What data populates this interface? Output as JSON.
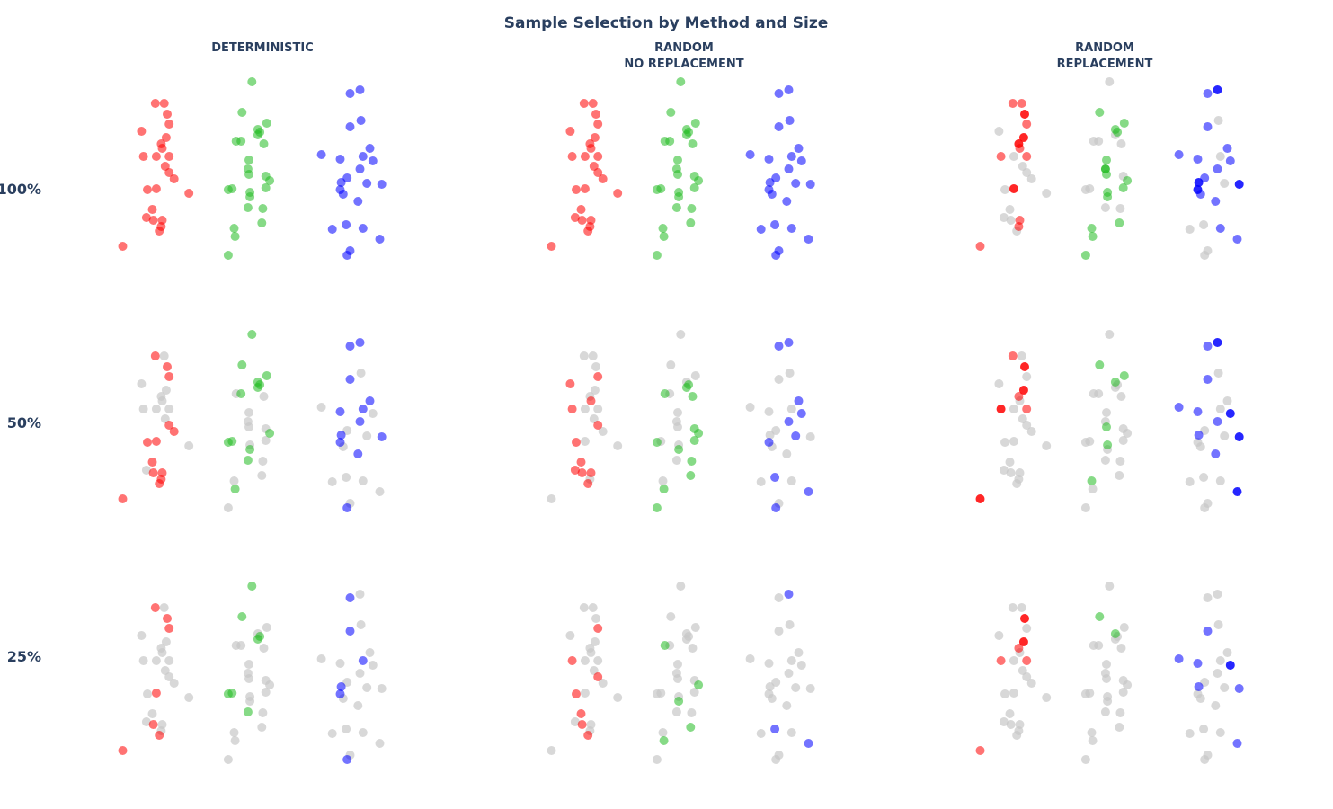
{
  "chart_data": {
    "type": "scatter",
    "subtype": "strip-plot facet grid",
    "title": "Sample Selection by Method and Size",
    "columns": [
      "DETERMINISTIC",
      "RANDOM\nNO REPLACEMENT",
      "RANDOM\nREPLACEMENT"
    ],
    "rows": [
      "100%",
      "50%",
      "25%"
    ],
    "groups": [
      {
        "name": "red",
        "color": "#ff0000",
        "points": [
          [
            -0.02,
            92.5
          ],
          [
            0.07,
            92.5
          ],
          [
            0.1,
            86.5
          ],
          [
            0.12,
            81
          ],
          [
            -0.16,
            77
          ],
          [
            0.09,
            73.5
          ],
          [
            0.04,
            70
          ],
          [
            0.05,
            67.5
          ],
          [
            -0.14,
            63
          ],
          [
            -0.01,
            63
          ],
          [
            0.12,
            63
          ],
          [
            0.08,
            57.5
          ],
          [
            0.12,
            54
          ],
          [
            0.17,
            50.5
          ],
          [
            -0.1,
            44.5
          ],
          [
            -0.01,
            45
          ],
          [
            0.32,
            42.5
          ],
          [
            -0.05,
            33.5
          ],
          [
            -0.11,
            29
          ],
          [
            -0.04,
            27.5
          ],
          [
            0.05,
            27.5
          ],
          [
            0.04,
            24
          ],
          [
            0.02,
            21.5
          ],
          [
            -0.35,
            13
          ]
        ]
      },
      {
        "name": "green",
        "color": "#22bb22",
        "points": [
          [
            0.03,
            104.5
          ],
          [
            -0.07,
            87.5
          ],
          [
            0.18,
            81.5
          ],
          [
            0.09,
            78
          ],
          [
            0.11,
            76.5
          ],
          [
            0.09,
            75
          ],
          [
            -0.13,
            71.5
          ],
          [
            -0.08,
            71.5
          ],
          [
            0.15,
            70
          ],
          [
            0.0,
            61
          ],
          [
            -0.01,
            56
          ],
          [
            0.0,
            53
          ],
          [
            0.17,
            52
          ],
          [
            0.21,
            49.5
          ],
          [
            0.17,
            45.5
          ],
          [
            -0.21,
            44.5
          ],
          [
            -0.17,
            45
          ],
          [
            0.01,
            43
          ],
          [
            0.01,
            40.5
          ],
          [
            -0.01,
            34.5
          ],
          [
            0.14,
            34
          ],
          [
            0.13,
            26
          ],
          [
            -0.15,
            23
          ],
          [
            -0.14,
            18.5
          ],
          [
            -0.21,
            8
          ]
        ]
      },
      {
        "name": "blue",
        "color": "#0000ff",
        "points": [
          [
            -0.05,
            98
          ],
          [
            0.05,
            100
          ],
          [
            -0.05,
            79.5
          ],
          [
            0.06,
            83
          ],
          [
            -0.34,
            64
          ],
          [
            -0.15,
            61.5
          ],
          [
            0.08,
            63
          ],
          [
            0.15,
            67.5
          ],
          [
            0.18,
            60.5
          ],
          [
            0.05,
            56
          ],
          [
            -0.08,
            51
          ],
          [
            -0.14,
            48.5
          ],
          [
            0.12,
            48
          ],
          [
            0.27,
            47.5
          ],
          [
            -0.15,
            44.5
          ],
          [
            -0.12,
            42
          ],
          [
            0.03,
            38
          ],
          [
            -0.23,
            22.5
          ],
          [
            -0.09,
            25
          ],
          [
            0.08,
            23
          ],
          [
            0.25,
            17
          ],
          [
            -0.05,
            10.5
          ],
          [
            -0.08,
            8
          ]
        ]
      }
    ],
    "unselected_color": "#c8c8c8",
    "selections": [
      [
        [
          "all",
          "all",
          "all"
        ],
        [
          "all",
          "all",
          "all"
        ],
        [
          [
            0,
            1,
            2,
            2,
            3,
            5,
            5,
            6,
            6,
            7,
            8,
            10,
            15,
            15,
            20,
            21,
            23
          ],
          [
            1,
            2,
            3,
            4,
            9,
            10,
            10,
            11,
            13,
            14,
            17,
            18,
            21,
            22,
            23,
            24
          ],
          [
            0,
            1,
            1,
            2,
            4,
            5,
            7,
            8,
            9,
            10,
            11,
            11,
            13,
            13,
            14,
            14,
            15,
            16,
            19,
            20
          ]
        ]
      ],
      [
        [
          [
            0,
            2,
            3,
            12,
            13,
            14,
            15,
            17,
            19,
            20,
            21,
            22,
            23
          ],
          [
            0,
            1,
            2,
            3,
            4,
            5,
            7,
            13,
            15,
            16,
            18,
            19,
            23
          ],
          [
            0,
            1,
            2,
            5,
            6,
            7,
            9,
            11,
            13,
            14,
            16,
            22
          ]
        ],
        [
          [
            3,
            4,
            7,
            8,
            12,
            14,
            17,
            18,
            19,
            20,
            22
          ],
          [
            4,
            5,
            6,
            8,
            12,
            13,
            14,
            15,
            18,
            20,
            21,
            23,
            24
          ],
          [
            0,
            1,
            7,
            8,
            9,
            12,
            14,
            18,
            20,
            22
          ]
        ],
        [
          [
            0,
            2,
            2,
            5,
            5,
            6,
            8,
            8,
            10,
            23,
            23
          ],
          [
            1,
            2,
            3,
            11,
            17,
            22
          ],
          [
            0,
            1,
            1,
            2,
            4,
            5,
            8,
            8,
            9,
            11,
            13,
            13,
            16,
            20,
            20
          ]
        ]
      ],
      [
        [
          [
            0,
            2,
            3,
            15,
            19,
            22,
            23
          ],
          [
            0,
            1,
            4,
            5,
            15,
            16,
            19
          ],
          [
            0,
            2,
            6,
            11,
            14,
            22
          ]
        ],
        [
          [
            3,
            8,
            12,
            14,
            17,
            19,
            22
          ],
          [
            6,
            13,
            18,
            21,
            23
          ],
          [
            1,
            18,
            20
          ]
        ],
        [
          [
            2,
            2,
            5,
            5,
            6,
            8,
            10,
            23
          ],
          [
            1,
            3
          ],
          [
            2,
            4,
            5,
            8,
            8,
            11,
            13,
            20
          ]
        ]
      ]
    ],
    "grid": false,
    "legend": "none"
  }
}
